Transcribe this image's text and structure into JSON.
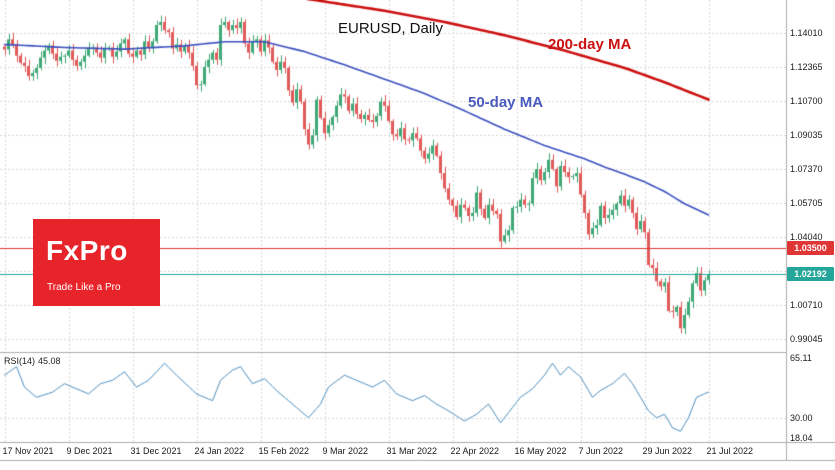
{
  "title": "EURUSD, Daily",
  "labels": {
    "ma200": "200-day MA",
    "ma50": "50-day MA"
  },
  "logo": {
    "name": "FxPro",
    "tagline": "Trade Like a Pro"
  },
  "rsi": {
    "label": "RSI(14)",
    "value": "45.08"
  },
  "axis": {
    "price_labels": [
      "1.14010",
      "1.12365",
      "1.10700",
      "1.09035",
      "1.07370",
      "1.05705",
      "1.04040",
      "1.00710",
      "0.99045"
    ],
    "price_gridlines": [
      1.1401,
      1.12365,
      1.107,
      1.09035,
      1.0737,
      1.05705,
      1.0404,
      1.02375,
      1.0071,
      0.99045
    ],
    "rsi_labels": [
      "65.11",
      "30.00",
      "18.04"
    ],
    "date_labels": [
      "17 Nov 2021",
      "9 Dec 2021",
      "31 Dec 2021",
      "24 Jan 2022",
      "15 Feb 2022",
      "9 Mar 2022",
      "31 Mar 2022",
      "22 Apr 2022",
      "16 May 2022",
      "7 Jun 2022",
      "29 Jun 2022",
      "21 Jul 2022"
    ]
  },
  "price_lines": {
    "alert": {
      "price": 1.035,
      "label": "1.03500",
      "color": "#e03535"
    },
    "current": {
      "price": 1.02192,
      "label": "1.02192",
      "color": "#26a69a"
    }
  },
  "colors": {
    "up": "#3fa876",
    "down": "#e05a5a",
    "ma50": "#3b4fc0",
    "ma200": "#cc1111",
    "rsi_line": "#4f8fbf",
    "grid": "#d9d9d9",
    "separator": "#adadad",
    "axis_text": "#1a1a1a",
    "logo_bg": "#e8242b"
  },
  "chart_data": {
    "type": "candlestick",
    "symbol": "EURUSD",
    "timeframe": "Daily",
    "x_axis": {
      "start": "17 Nov 2021",
      "end": "21 Jul 2022",
      "tick_labels": [
        "17 Nov 2021",
        "9 Dec 2021",
        "31 Dec 2021",
        "24 Jan 2022",
        "15 Feb 2022",
        "9 Mar 2022",
        "31 Mar 2022",
        "22 Apr 2022",
        "16 May 2022",
        "7 Jun 2022",
        "29 Jun 2022",
        "21 Jul 2022"
      ],
      "tick_days": [
        0,
        16,
        32,
        48,
        64,
        80,
        96,
        112,
        128,
        144,
        160,
        176
      ]
    },
    "y_axis": {
      "min": 0.984,
      "max": 1.156,
      "tick_step": 0.01665
    },
    "current_price": 1.02192,
    "horizontal_line": 1.035,
    "closes": [
      1.132,
      1.137,
      1.1345,
      1.129,
      1.1255,
      1.124,
      1.119,
      1.1205,
      1.123,
      1.128,
      1.1315,
      1.134,
      1.13,
      1.1265,
      1.1285,
      1.129,
      1.1315,
      1.127,
      1.124,
      1.126,
      1.129,
      1.1325,
      1.133,
      1.1305,
      1.128,
      1.1325,
      1.133,
      1.1285,
      1.131,
      1.135,
      1.137,
      1.13,
      1.1285,
      1.1315,
      1.1295,
      1.136,
      1.133,
      1.136,
      1.144,
      1.1455,
      1.1415,
      1.1405,
      1.1325,
      1.1345,
      1.131,
      1.134,
      1.1305,
      1.124,
      1.1145,
      1.115,
      1.1235,
      1.127,
      1.1305,
      1.127,
      1.144,
      1.1455,
      1.1415,
      1.144,
      1.1425,
      1.1455,
      1.135,
      1.1305,
      1.136,
      1.137,
      1.131,
      1.1365,
      1.133,
      1.126,
      1.122,
      1.126,
      1.123,
      1.112,
      1.106,
      1.1125,
      1.1065,
      1.093,
      1.0855,
      1.09,
      1.1075,
      1.0985,
      1.091,
      1.095,
      1.099,
      1.1045,
      1.11,
      1.109,
      1.102,
      1.1055,
      1.1005,
      1.098,
      1.1,
      1.0975,
      1.0965,
      1.0995,
      1.1065,
      1.1045,
      1.097,
      1.0905,
      1.0895,
      1.0935,
      1.088,
      1.0875,
      1.091,
      1.0885,
      1.0825,
      1.0785,
      1.081,
      1.085,
      1.08,
      1.0715,
      1.064,
      1.0585,
      1.0555,
      1.05,
      1.056,
      1.0545,
      1.0505,
      1.052,
      1.062,
      1.054,
      1.0495,
      1.056,
      1.053,
      1.0515,
      1.038,
      1.041,
      1.0435,
      1.0545,
      1.055,
      1.0585,
      1.056,
      1.0565,
      1.069,
      1.0735,
      1.068,
      1.072,
      1.078,
      1.0735,
      1.065,
      1.075,
      1.072,
      1.0695,
      1.07,
      1.0715,
      1.061,
      1.052,
      1.0415,
      1.0445,
      1.046,
      1.0555,
      1.0495,
      1.051,
      1.0535,
      1.0565,
      1.0605,
      1.0555,
      1.0585,
      1.052,
      1.044,
      1.048,
      1.0425,
      1.0265,
      1.025,
      1.0185,
      1.016,
      1.018,
      1.004,
      1.0035,
      1.006,
      0.9955,
      1.002,
      1.0085,
      1.0175,
      1.0225,
      1.014,
      1.019,
      1.0219
    ],
    "ma50_points": [
      [
        0,
        1.1345
      ],
      [
        15,
        1.133
      ],
      [
        30,
        1.1322
      ],
      [
        45,
        1.1338
      ],
      [
        55,
        1.1358
      ],
      [
        65,
        1.1358
      ],
      [
        75,
        1.131
      ],
      [
        85,
        1.1245
      ],
      [
        95,
        1.1175
      ],
      [
        105,
        1.1105
      ],
      [
        115,
        1.102
      ],
      [
        125,
        1.093
      ],
      [
        135,
        1.085
      ],
      [
        145,
        1.0785
      ],
      [
        150,
        1.0745
      ],
      [
        155,
        1.071
      ],
      [
        160,
        1.0672
      ],
      [
        165,
        1.0625
      ],
      [
        170,
        1.0565
      ],
      [
        176,
        1.051
      ]
    ],
    "ma200_points": [
      [
        70,
        1.1585
      ],
      [
        80,
        1.1555
      ],
      [
        95,
        1.151
      ],
      [
        110,
        1.1455
      ],
      [
        125,
        1.139
      ],
      [
        140,
        1.1315
      ],
      [
        155,
        1.123
      ],
      [
        165,
        1.116
      ],
      [
        176,
        1.1075
      ]
    ],
    "indicator": {
      "name": "RSI",
      "period": 14,
      "current": 45.08,
      "range": [
        18.04,
        65.11
      ],
      "level": 30.0,
      "points": [
        [
          0,
          55
        ],
        [
          3,
          60
        ],
        [
          5,
          48
        ],
        [
          8,
          42
        ],
        [
          12,
          45
        ],
        [
          15,
          50
        ],
        [
          18,
          47
        ],
        [
          21,
          44
        ],
        [
          24,
          50
        ],
        [
          27,
          52
        ],
        [
          30,
          57
        ],
        [
          33,
          48
        ],
        [
          36,
          52
        ],
        [
          40,
          62
        ],
        [
          43,
          55
        ],
        [
          48,
          44
        ],
        [
          52,
          40
        ],
        [
          54,
          52
        ],
        [
          57,
          58
        ],
        [
          59,
          60
        ],
        [
          62,
          50
        ],
        [
          65,
          53
        ],
        [
          68,
          46
        ],
        [
          72,
          38
        ],
        [
          76,
          30
        ],
        [
          79,
          38
        ],
        [
          81,
          48
        ],
        [
          85,
          55
        ],
        [
          88,
          52
        ],
        [
          92,
          48
        ],
        [
          95,
          52
        ],
        [
          98,
          44
        ],
        [
          102,
          40
        ],
        [
          105,
          43
        ],
        [
          108,
          38
        ],
        [
          111,
          34
        ],
        [
          115,
          28
        ],
        [
          118,
          32
        ],
        [
          121,
          38
        ],
        [
          124,
          27
        ],
        [
          126,
          33
        ],
        [
          129,
          42
        ],
        [
          132,
          47
        ],
        [
          135,
          55
        ],
        [
          137,
          62
        ],
        [
          139,
          55
        ],
        [
          141,
          60
        ],
        [
          144,
          54
        ],
        [
          147,
          42
        ],
        [
          149,
          46
        ],
        [
          152,
          50
        ],
        [
          155,
          56
        ],
        [
          157,
          50
        ],
        [
          159,
          42
        ],
        [
          161,
          34
        ],
        [
          163,
          30
        ],
        [
          165,
          32
        ],
        [
          167,
          24
        ],
        [
          169,
          22
        ],
        [
          171,
          30
        ],
        [
          173,
          42
        ],
        [
          176,
          45.08
        ]
      ]
    },
    "render": {
      "wick_base": 0.0008,
      "wick_var": 0.0024
    }
  }
}
